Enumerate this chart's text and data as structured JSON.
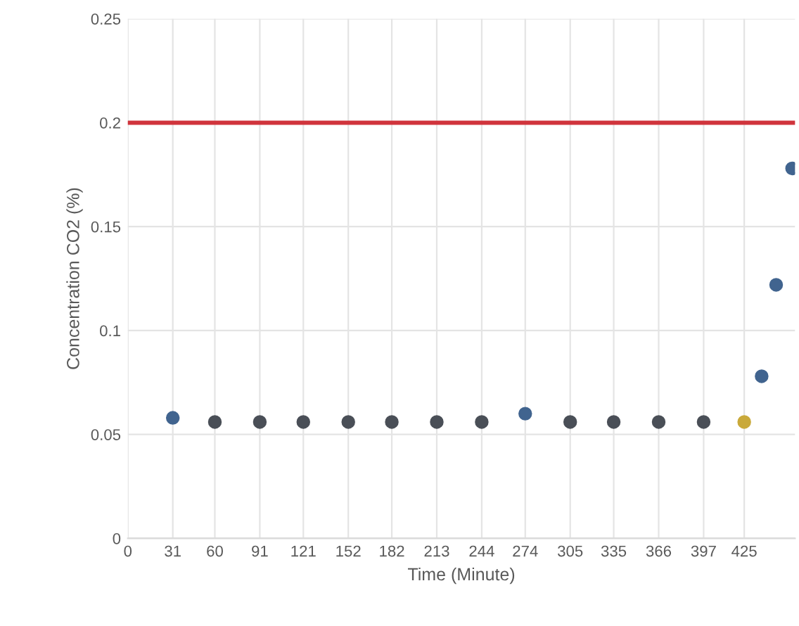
{
  "chart_data": {
    "type": "scatter",
    "xlabel": "Time (Minute)",
    "ylabel": "Concentration CO2 (%)",
    "x": [
      31,
      60,
      91,
      121,
      152,
      182,
      213,
      244,
      274,
      305,
      335,
      366,
      397,
      425,
      437,
      447,
      458
    ],
    "values": [
      0.058,
      0.056,
      0.056,
      0.056,
      0.056,
      0.056,
      0.056,
      0.056,
      0.06,
      0.056,
      0.056,
      0.056,
      0.056,
      0.056,
      0.078,
      0.122,
      0.178
    ],
    "colors": [
      "#41648f",
      "#4a4f57",
      "#4a4f57",
      "#4a4f57",
      "#4a4f57",
      "#4a4f57",
      "#4a4f57",
      "#4a4f57",
      "#41648f",
      "#4a4f57",
      "#4a4f57",
      "#4a4f57",
      "#4a4f57",
      "#c9a93a",
      "#41648f",
      "#41648f",
      "#41648f"
    ],
    "marker": "circle",
    "xlim": [
      0,
      460
    ],
    "xticks": [
      0,
      31,
      60,
      91,
      121,
      152,
      182,
      213,
      244,
      274,
      305,
      335,
      366,
      397,
      425
    ],
    "ylim": [
      0,
      0.25
    ],
    "yticks": [
      0,
      0.05,
      0.1,
      0.15,
      0.2,
      0.25
    ],
    "ref_lines": [
      {
        "axis": "y",
        "value": 0.2,
        "color": "#d0343c",
        "line_style": "solid"
      }
    ],
    "grid": true
  }
}
